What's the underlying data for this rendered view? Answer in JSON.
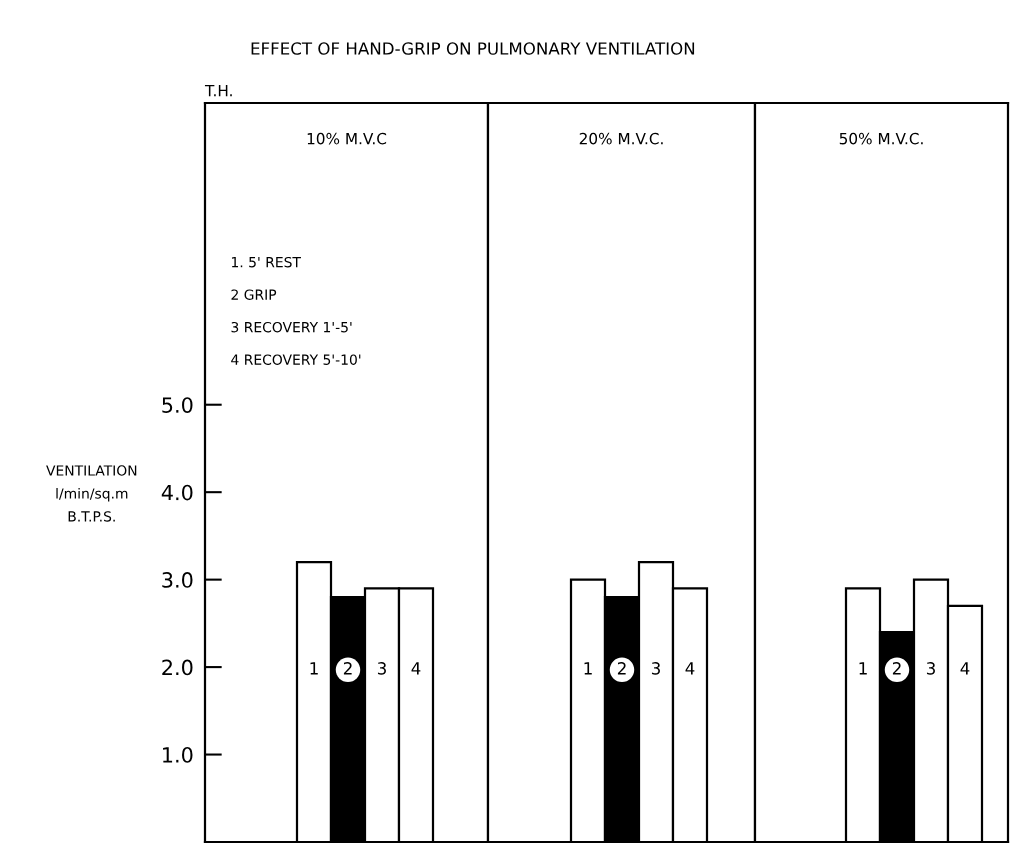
{
  "chart_data": [
    {
      "type": "bar",
      "title": "10% M.V.C",
      "categories": [
        "1",
        "2",
        "3",
        "4"
      ],
      "values": [
        3.2,
        2.8,
        2.9,
        2.9
      ],
      "colors": [
        "#ffffff",
        "#000000",
        "#ffffff",
        "#ffffff"
      ],
      "ylim": [
        0,
        8.45
      ],
      "yticks": [
        {
          "value": 1,
          "label": "1.0"
        },
        {
          "value": 2,
          "label": "2.0"
        },
        {
          "value": 3,
          "label": "3.0"
        },
        {
          "value": 4,
          "label": "4.0"
        },
        {
          "value": 5,
          "label": "5.0"
        }
      ],
      "ylabel": "VENTILATION\nl/min/sq.m\nB.T.P.S.",
      "grid": false,
      "legend": false,
      "annotations": [
        "EFFECT OF HAND-GRIP ON PULMONARY VENTILATION",
        "T.H.",
        "1. 5' REST",
        "2 GRIP",
        "3 RECOVERY 1'-5'",
        "4 RECOVERY 5'-10'"
      ]
    },
    {
      "type": "bar",
      "title": "20% M.V.C.",
      "categories": [
        "1",
        "2",
        "3",
        "4"
      ],
      "values": [
        3.0,
        2.8,
        3.2,
        2.9
      ],
      "colors": [
        "#ffffff",
        "#000000",
        "#ffffff",
        "#ffffff"
      ],
      "ylim": [
        0,
        8.45
      ],
      "tick_labels": "x",
      "grid": false,
      "legend": false
    },
    {
      "type": "bar",
      "title": "50% M.V.C.",
      "categories": [
        "1",
        "2",
        "3",
        "4"
      ],
      "values": [
        2.9,
        2.4,
        3.0,
        2.7
      ],
      "colors": [
        "#ffffff",
        "#000000",
        "#ffffff",
        "#ffffff"
      ],
      "ylim": [
        0,
        8.45
      ],
      "tick_labels": "x",
      "grid": false,
      "legend": false
    }
  ]
}
